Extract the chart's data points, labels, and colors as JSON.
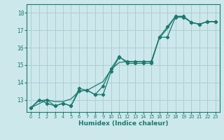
{
  "xlabel": "Humidex (Indice chaleur)",
  "ylabel": "",
  "xlim": [
    -0.5,
    23.5
  ],
  "ylim": [
    12.3,
    18.5
  ],
  "yticks": [
    13,
    14,
    15,
    16,
    17,
    18
  ],
  "xticks": [
    0,
    1,
    2,
    3,
    4,
    5,
    6,
    7,
    8,
    9,
    10,
    11,
    12,
    13,
    14,
    15,
    16,
    17,
    18,
    19,
    20,
    21,
    22,
    23
  ],
  "background_color": "#cce8ea",
  "grid_color": "#aacfd2",
  "line_color": "#1a7a6e",
  "line1_x": [
    0,
    1,
    2,
    3,
    4,
    5,
    6,
    7,
    8,
    9,
    10,
    11,
    12,
    13,
    14,
    15,
    16,
    17,
    18,
    19,
    20,
    21,
    22,
    23
  ],
  "line1_y": [
    12.55,
    12.95,
    13.0,
    12.9,
    12.9,
    13.05,
    13.5,
    13.55,
    13.8,
    14.05,
    14.75,
    15.15,
    15.2,
    15.2,
    15.2,
    15.2,
    16.55,
    17.1,
    17.8,
    17.8,
    17.45,
    17.35,
    17.5,
    17.5
  ],
  "line2_x": [
    0,
    1,
    2,
    3,
    4,
    5,
    6,
    7,
    8,
    9,
    10,
    11,
    12,
    13,
    14,
    15,
    16,
    17,
    18,
    19,
    20,
    21,
    22,
    23
  ],
  "line2_y": [
    12.55,
    13.0,
    12.8,
    12.65,
    12.8,
    12.65,
    13.5,
    13.55,
    13.3,
    13.3,
    14.65,
    15.45,
    15.2,
    15.2,
    15.2,
    15.2,
    16.6,
    17.2,
    17.8,
    17.8,
    17.45,
    17.35,
    17.5,
    17.5
  ],
  "line3_x": [
    0,
    2,
    3,
    4,
    5,
    6,
    7,
    8,
    9,
    10,
    11,
    12,
    13,
    14,
    15,
    16,
    17,
    18,
    19,
    20,
    21,
    22,
    23
  ],
  "line3_y": [
    12.55,
    13.0,
    12.65,
    12.8,
    12.65,
    13.65,
    13.55,
    13.3,
    13.8,
    14.8,
    15.5,
    15.1,
    15.1,
    15.1,
    15.1,
    16.6,
    16.6,
    17.75,
    17.75,
    17.45,
    17.35,
    17.5,
    17.5
  ]
}
